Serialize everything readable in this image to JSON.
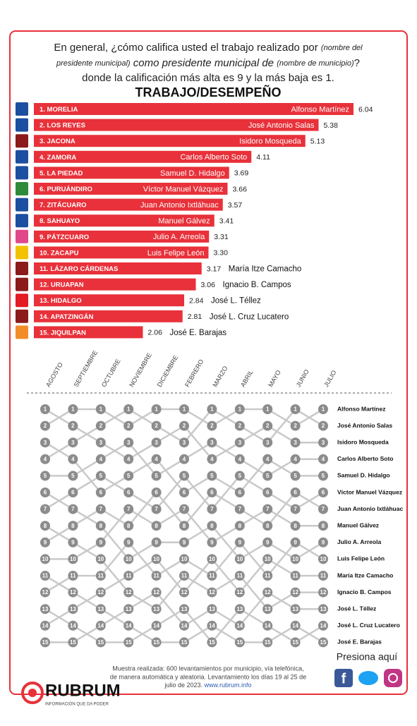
{
  "header": {
    "question": [
      "En general, ¿cómo califica usted el trabajo realizado por",
      "(nombre del",
      "presidente municipal)",
      "como presidente municipal de",
      "(nombre de municipio)",
      "?",
      "donde la calificación más alta es 9 y la más baja es 1."
    ],
    "title": "TRABAJO/DESEMPEÑO"
  },
  "chart_data": {
    "type": "bar",
    "color": "#e8313a",
    "categories": [
      "1. MORELIA",
      "2. LOS REYES",
      "3. JACONA",
      "4. ZAMORA",
      "5. LA PIEDAD",
      "6. PURUÁNDIRO",
      "7. ZITÁCUARO",
      "8. SAHUAYO",
      "9. PÁTZCUARO",
      "10. ZACAPU",
      "11. LÁZARO CÁRDENAS",
      "12. URUAPAN",
      "13. HIDALGO",
      "14. APATZINGÁN",
      "15. JIQUILPAN"
    ],
    "names": [
      "Alfonso Martínez",
      "José Antonio Salas",
      "Isidoro Mosqueda",
      "Carlos Alberto Soto",
      "Samuel D. Hidalgo",
      "Víctor Manuel Vázquez",
      "Juan Antonio Ixtláhuac",
      "Manuel Gálvez",
      "Julio A. Arreola",
      "Luis Felipe León",
      "María Itze Camacho",
      "Ignacio B. Campos",
      "José L. Téllez",
      "José L. Cruz Lucatero",
      "José E. Barajas"
    ],
    "values": [
      6.04,
      5.38,
      5.13,
      4.11,
      3.69,
      3.66,
      3.57,
      3.41,
      3.31,
      3.3,
      3.17,
      3.06,
      2.84,
      2.81,
      2.06
    ],
    "value_labels": [
      "6.04",
      "5.38",
      "5.13",
      "4.11",
      "3.69",
      "3.66",
      "3.57",
      "3.41",
      "3.31",
      "3.30",
      "3.17",
      "3.06",
      "2.84",
      "2.81",
      "2.06"
    ]
  },
  "bump": {
    "months": [
      "AGOSTO",
      "SEPTIEMBRE",
      "OCTUBRE",
      "NOVIEMBRE",
      "DICIEMBRE",
      "FEBRERO",
      "MARZO",
      "ABRIL",
      "MAYO",
      "JUNIO",
      "JULIO"
    ],
    "ranks": [
      1,
      2,
      3,
      4,
      5,
      6,
      7,
      8,
      9,
      10,
      11,
      12,
      13,
      14,
      15
    ],
    "names": [
      "Alfonso Martínez",
      "José Antonio Salas",
      "Isidoro Mosqueda",
      "Carlos Alberto Soto",
      "Samuel D. Hidalgo",
      "Víctor Manuel Vázquez",
      "Juan Antonio Ixtláhuac",
      "Manuel Gálvez",
      "Julio A. Arreola",
      "Luis Felipe León",
      "María Itze Camacho",
      "Ignacio B. Campos",
      "José L. Téllez",
      "José L. Cruz Lucatero",
      "José E. Barajas"
    ],
    "orders": [
      [
        3,
        1,
        5,
        2,
        4,
        9,
        6,
        12,
        7,
        8,
        15,
        10,
        14,
        11,
        13
      ],
      [
        1,
        3,
        2,
        5,
        4,
        6,
        9,
        7,
        12,
        8,
        10,
        15,
        11,
        14,
        13
      ],
      [
        1,
        2,
        3,
        4,
        6,
        5,
        7,
        9,
        8,
        12,
        10,
        11,
        15,
        13,
        14
      ],
      [
        2,
        1,
        4,
        3,
        5,
        6,
        8,
        7,
        10,
        9,
        11,
        12,
        13,
        15,
        14
      ],
      [
        1,
        2,
        3,
        5,
        4,
        7,
        6,
        8,
        9,
        11,
        10,
        13,
        12,
        14,
        15
      ],
      [
        1,
        3,
        2,
        4,
        6,
        5,
        8,
        7,
        9,
        10,
        12,
        11,
        14,
        13,
        15
      ],
      [
        2,
        1,
        4,
        3,
        5,
        7,
        6,
        9,
        8,
        11,
        10,
        12,
        13,
        15,
        14
      ],
      [
        1,
        2,
        3,
        4,
        6,
        5,
        7,
        8,
        10,
        9,
        12,
        11,
        14,
        13,
        15
      ],
      [
        1,
        3,
        2,
        5,
        4,
        6,
        8,
        7,
        9,
        11,
        10,
        13,
        12,
        14,
        15
      ],
      [
        2,
        1,
        3,
        4,
        5,
        7,
        6,
        8,
        10,
        9,
        11,
        12,
        13,
        15,
        14
      ],
      [
        1,
        2,
        3,
        4,
        5,
        6,
        7,
        8,
        9,
        10,
        11,
        12,
        13,
        14,
        15
      ]
    ]
  },
  "footer": {
    "note": [
      "Muestra realizada: 600 levantamientos por municipio, vía telefónica,",
      "de manera automática y aleatoria. Levantamiento los días 19 al 25 de",
      "julio de 2023."
    ],
    "link": "www.rubrum.info",
    "cta": "Presiona aquí",
    "brand": "RUBRUM",
    "tagline": "INFORMACIÓN QUE DA PODER"
  }
}
